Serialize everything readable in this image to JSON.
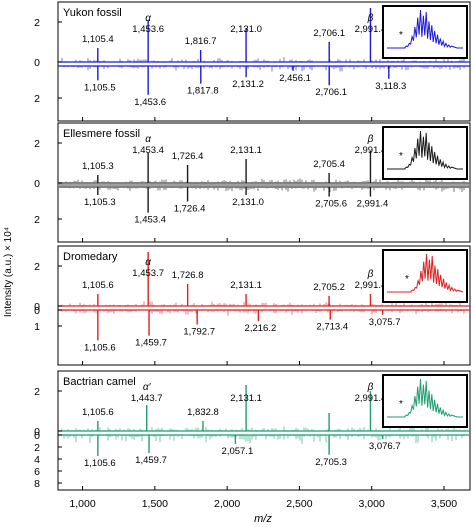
{
  "figure": {
    "xlabel": "m/z",
    "ylabel": "Intensity (a.u.) × 10⁴",
    "x_ticks": [
      "1,000",
      "1,500",
      "2,000",
      "2,500",
      "3,000",
      "3,500"
    ]
  },
  "chart_data": [
    {
      "type": "line",
      "title": "Yukon fossil",
      "color": "#1a1adb",
      "xlim": [
        830,
        3680
      ],
      "ylim_top": [
        0,
        3
      ],
      "ylim_bottom": [
        0,
        3
      ],
      "y_ticks_top": [
        "0",
        "2"
      ],
      "y_ticks_bottom": [
        "2"
      ],
      "top_peaks": [
        {
          "x": 1105.4,
          "y": 0.7,
          "label": "1,105.4"
        },
        {
          "x": 1453.6,
          "y": 2.1,
          "label": "1,453.6",
          "tag": "α"
        },
        {
          "x": 1816.7,
          "y": 0.6,
          "label": "1,816.7"
        },
        {
          "x": 2131.0,
          "y": 1.7,
          "label": "2,131.0"
        },
        {
          "x": 2706.1,
          "y": 1.0,
          "label": "2,706.1"
        },
        {
          "x": 2991.4,
          "y": 2.7,
          "label": "2,991.4",
          "tag": "β"
        }
      ],
      "bottom_peaks": [
        {
          "x": 1105.5,
          "y": 0.9,
          "label": "1,105.5"
        },
        {
          "x": 1453.6,
          "y": 1.8,
          "label": "1,453.6"
        },
        {
          "x": 1817.8,
          "y": 1.1,
          "label": "1,817.8"
        },
        {
          "x": 2131.2,
          "y": 0.7,
          "label": "2,131.2"
        },
        {
          "x": 2456.1,
          "y": 0.3,
          "label": "2,456.1"
        },
        {
          "x": 2706.1,
          "y": 1.2,
          "label": "2,706.1"
        },
        {
          "x": 3118.3,
          "y": 0.8,
          "label": "3,118.3"
        }
      ]
    },
    {
      "type": "line",
      "title": "Ellesmere fossil",
      "color": "#1a1a1a",
      "xlim": [
        830,
        3680
      ],
      "ylim_top": [
        0,
        3
      ],
      "ylim_bottom": [
        0,
        3
      ],
      "y_ticks_top": [
        "0",
        "2"
      ],
      "y_ticks_bottom": [
        "2"
      ],
      "top_peaks": [
        {
          "x": 1105.3,
          "y": 0.4,
          "label": "1,105.3"
        },
        {
          "x": 1453.4,
          "y": 1.5,
          "label": "1,453.4",
          "tag": "α"
        },
        {
          "x": 1726.4,
          "y": 0.9,
          "label": "1,726.4"
        },
        {
          "x": 2131.1,
          "y": 1.2,
          "label": "2,131.1"
        },
        {
          "x": 2705.4,
          "y": 0.5,
          "label": "2,705.4"
        },
        {
          "x": 2991.4,
          "y": 1.6,
          "label": "2,991.4",
          "tag": "β"
        }
      ],
      "bottom_peaks": [
        {
          "x": 1105.3,
          "y": 0.5,
          "label": "1,105.3"
        },
        {
          "x": 1453.4,
          "y": 1.6,
          "label": "1,453.4"
        },
        {
          "x": 1726.4,
          "y": 0.9,
          "label": "1,726.4"
        },
        {
          "x": 2131.0,
          "y": 0.5,
          "label": "2,131.0"
        },
        {
          "x": 2705.6,
          "y": 0.6,
          "label": "2,705.6"
        },
        {
          "x": 2991.4,
          "y": 0.6,
          "label": "2,991.4"
        }
      ]
    },
    {
      "type": "line",
      "title": "Dromedary",
      "color": "#e02020",
      "xlim": [
        830,
        3680
      ],
      "ylim_top": [
        0,
        3
      ],
      "ylim_bottom": [
        0,
        3
      ],
      "y_ticks_top": [
        "0",
        "2"
      ],
      "y_ticks_bottom": [
        "0",
        "1"
      ],
      "top_peaks": [
        {
          "x": 1105.6,
          "y": 0.6,
          "label": "1,105.6"
        },
        {
          "x": 1453.7,
          "y": 2.7,
          "label": "1,453.7",
          "tag": "α"
        },
        {
          "x": 1726.8,
          "y": 1.1,
          "label": "1,726.8"
        },
        {
          "x": 2131.1,
          "y": 0.6,
          "label": "2,131.1"
        },
        {
          "x": 2705.2,
          "y": 0.5,
          "label": "2,705.2"
        },
        {
          "x": 2991.4,
          "y": 0.6,
          "label": "2,991.4",
          "tag": "β"
        }
      ],
      "bottom_peaks": [
        {
          "x": 1105.6,
          "y": 1.9,
          "label": "1,105.6"
        },
        {
          "x": 1459.7,
          "y": 1.6,
          "label": "1,459.7"
        },
        {
          "x": 1792.7,
          "y": 0.9,
          "label": "1,792.7"
        },
        {
          "x": 2216.2,
          "y": 0.7,
          "label": "2,216.2"
        },
        {
          "x": 2713.4,
          "y": 0.6,
          "label": "2,713.4"
        },
        {
          "x": 3075.7,
          "y": 0.3,
          "label": "3,075.7"
        }
      ]
    },
    {
      "type": "line",
      "title": "Bactrian camel",
      "color": "#1f9e6e",
      "xlim": [
        830,
        3680
      ],
      "ylim_top": [
        0,
        3
      ],
      "ylim_bottom": [
        0,
        9
      ],
      "y_ticks_top": [
        "0",
        "2"
      ],
      "y_ticks_bottom": [
        "0",
        "2",
        "4",
        "6",
        "8"
      ],
      "top_peaks": [
        {
          "x": 1105.6,
          "y": 0.5,
          "label": "1,105.6"
        },
        {
          "x": 1443.7,
          "y": 1.3,
          "label": "1,443.7",
          "tag": "α′"
        },
        {
          "x": 1832.8,
          "y": 0.5,
          "label": "1,832.8"
        },
        {
          "x": 2131.1,
          "y": 2.3,
          "label": "2,131.1"
        },
        {
          "x": 2705.3,
          "y": 0.9,
          "label": ""
        },
        {
          "x": 2991.4,
          "y": 2.0,
          "label": "2,991.4",
          "tag": "β"
        }
      ],
      "bottom_peaks": [
        {
          "x": 1105.6,
          "y": 3.5,
          "label": "1,105.6"
        },
        {
          "x": 1459.7,
          "y": 3.0,
          "label": "1,459.7"
        },
        {
          "x": 2057.1,
          "y": 1.5,
          "label": "2,057.1"
        },
        {
          "x": 2705.3,
          "y": 3.3,
          "label": "2,705.3"
        },
        {
          "x": 3076.7,
          "y": 0.7,
          "label": "3,076.7"
        }
      ]
    }
  ]
}
